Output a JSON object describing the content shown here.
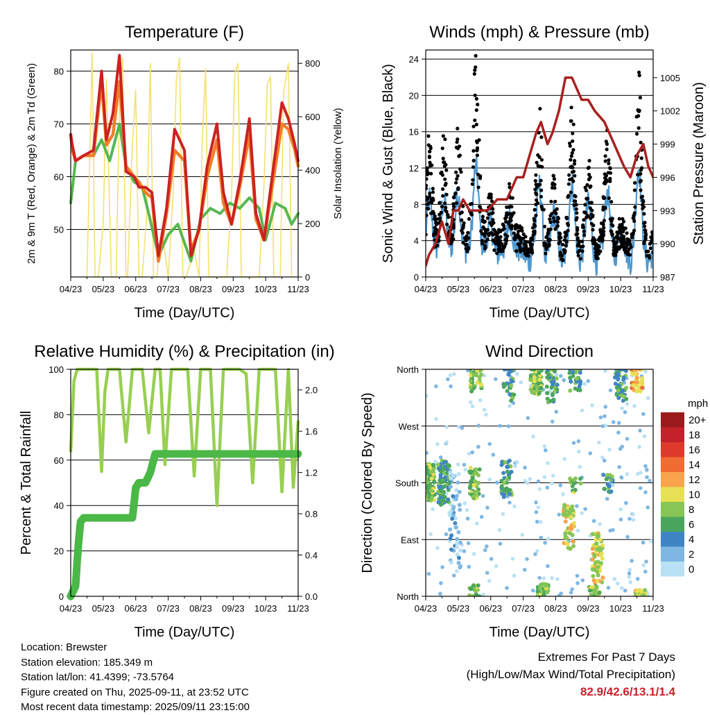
{
  "info": {
    "location": "Location: Brewster",
    "elevation": "Station elevation: 185.349 m",
    "latlon": "Station lat/lon: 41.4399; -73.5764",
    "created": "Figure created on Thu, 2025-09-11, at 23:52 UTC",
    "recent": "Most recent data timestamp: 2025/09/11 23:15:00"
  },
  "extremes": {
    "title": "Extremes For Past 7 Days",
    "subtitle": "(High/Low/Max Wind/Total Precipitation)",
    "values": "82.9/42.6/13.1/1.4"
  },
  "colors": {
    "temp_2m": "#cc2222",
    "temp_9m": "#f07f27",
    "dewpoint": "#4db347",
    "solar": "#f5e070",
    "gust": "#000000",
    "wind": "#4e98d0",
    "pressure": "#a8201e",
    "rh": "#98cf52",
    "rain": "#4bb847"
  },
  "chart_data": [
    {
      "id": "temperature",
      "type": "line",
      "title": "Temperature (F)",
      "xlabel": "Time (Day/UTC)",
      "ylabel": "2m & 9m T (Red, Orange) & 2m Td (Green)",
      "ylabel_right": "Solar Insolation (Yellow)",
      "xticks": [
        "04/23",
        "05/23",
        "06/23",
        "07/23",
        "08/23",
        "09/23",
        "10/23",
        "11/23"
      ],
      "xlim": [
        0,
        7
      ],
      "ylim": [
        41,
        84
      ],
      "yticks": [
        50,
        60,
        70,
        80
      ],
      "ylim_right": [
        0,
        850
      ],
      "yticks_right": [
        0,
        200,
        400,
        600,
        800
      ],
      "grid": true,
      "series": [
        {
          "key": "temp_2m",
          "x": [
            0,
            0.05,
            0.15,
            0.4,
            0.7,
            0.95,
            1.1,
            1.3,
            1.5,
            1.7,
            1.95,
            2.1,
            2.3,
            2.5,
            2.7,
            2.95,
            3.2,
            3.5,
            3.7,
            3.95,
            4.2,
            4.5,
            4.7,
            4.95,
            5.2,
            5.5,
            5.7,
            5.95,
            6.2,
            6.5,
            6.7,
            6.9,
            7.0
          ],
          "y": [
            68,
            66,
            63,
            64,
            65,
            80,
            67,
            72,
            83,
            61,
            60,
            58,
            58,
            57,
            45,
            54,
            69,
            65,
            45,
            50,
            62,
            70,
            57,
            51,
            59,
            71,
            53,
            48,
            60,
            74,
            71,
            66,
            63
          ]
        },
        {
          "key": "temp_9m",
          "x": [
            0,
            0.05,
            0.15,
            0.4,
            0.7,
            0.95,
            1.1,
            1.3,
            1.5,
            1.7,
            1.95,
            2.1,
            2.3,
            2.5,
            2.7,
            2.95,
            3.2,
            3.5,
            3.7,
            3.95,
            4.2,
            4.5,
            4.7,
            4.95,
            5.2,
            5.5,
            5.7,
            5.95,
            6.2,
            6.5,
            6.7,
            6.9,
            7.0
          ],
          "y": [
            68,
            65,
            63,
            64,
            64,
            78,
            66,
            68,
            78,
            62,
            60,
            59,
            57,
            56,
            44,
            53,
            65,
            63,
            46,
            50,
            60,
            67,
            55,
            51,
            58,
            68,
            52,
            48,
            58,
            70,
            69,
            65,
            62
          ]
        },
        {
          "key": "dewpoint",
          "x": [
            0,
            0.15,
            0.4,
            0.7,
            0.95,
            1.2,
            1.5,
            1.7,
            1.95,
            2.2,
            2.4,
            2.7,
            3.0,
            3.3,
            3.7,
            4.0,
            4.3,
            4.6,
            4.9,
            5.2,
            5.5,
            5.8,
            6.0,
            6.3,
            6.6,
            6.8,
            7.0
          ],
          "y": [
            55,
            63,
            64,
            64,
            67,
            63,
            70,
            62,
            59,
            58,
            53,
            45,
            49,
            51,
            44,
            52,
            54,
            53,
            55,
            54,
            56,
            54,
            48,
            55,
            54,
            51,
            53
          ]
        },
        {
          "key": "solar",
          "x": [
            0.4,
            0.5,
            0.58,
            0.66,
            0.75,
            0.85,
            1.0,
            1.1,
            1.25,
            1.4,
            1.5,
            1.6,
            1.7,
            1.75,
            1.9,
            2.0,
            2.1,
            2.2,
            2.35,
            2.45,
            2.55,
            2.65,
            2.8,
            3.0,
            3.15,
            3.25,
            3.35,
            3.45,
            3.55,
            3.8,
            3.95,
            4.05,
            4.15,
            4.25,
            4.35,
            4.55,
            4.8,
            4.95,
            5.05,
            5.15,
            5.25,
            5.35,
            5.55,
            5.8,
            5.95,
            6.05,
            6.15,
            6.25,
            6.35,
            6.45,
            6.55,
            6.7,
            6.8
          ],
          "y": [
            0,
            0,
            420,
            840,
            0,
            0,
            200,
            740,
            0,
            0,
            650,
            820,
            0,
            0,
            500,
            700,
            0,
            0,
            250,
            800,
            0,
            0,
            180,
            0,
            300,
            740,
            820,
            0,
            0,
            100,
            0,
            520,
            780,
            0,
            0,
            0,
            0,
            300,
            760,
            800,
            0,
            0,
            0,
            0,
            350,
            720,
            750,
            0,
            0,
            0,
            690,
            800,
            0
          ]
        }
      ]
    },
    {
      "id": "winds",
      "type": "scatter",
      "title": "Winds (mph) & Pressure (mb)",
      "xlabel": "Time (Day/UTC)",
      "ylabel": "Sonic Wind & Gust (Blue, Black)",
      "ylabel_right": "Station Pressure (Maroon)",
      "xticks": [
        "04/23",
        "05/23",
        "06/23",
        "07/23",
        "08/23",
        "09/23",
        "10/23",
        "11/23"
      ],
      "xlim": [
        0,
        7
      ],
      "ylim": [
        0,
        25
      ],
      "yticks": [
        0,
        4,
        8,
        12,
        16,
        20,
        24
      ],
      "ylim_right": [
        987,
        1007.5
      ],
      "yticks_right": [
        987,
        990,
        993,
        996,
        999,
        1002,
        1005
      ],
      "grid": true,
      "series": [
        {
          "key": "pressure",
          "x": [
            0,
            0.1,
            0.3,
            0.5,
            0.7,
            0.85,
            1.0,
            1.15,
            1.35,
            1.6,
            1.9,
            2.2,
            2.5,
            2.65,
            2.8,
            3.0,
            3.2,
            3.4,
            3.55,
            3.75,
            3.9,
            4.1,
            4.3,
            4.5,
            4.65,
            4.8,
            5.0,
            5.2,
            5.5,
            5.8,
            6.1,
            6.3,
            6.5,
            6.7,
            6.85,
            7.0
          ],
          "y": [
            988,
            989,
            990,
            992,
            990,
            993,
            993,
            994,
            993,
            993,
            993,
            994,
            994,
            995,
            996,
            996,
            998,
            1000,
            1001,
            999,
            1000,
            1002,
            1005,
            1005,
            1004,
            1003,
            1003,
            1002,
            1001,
            999,
            997,
            996,
            998,
            999,
            997,
            996
          ]
        }
      ],
      "gust_clusters": [
        {
          "x": 0.1,
          "peak": 14
        },
        {
          "x": 0.55,
          "peak": 15
        },
        {
          "x": 1.0,
          "peak": 16
        },
        {
          "x": 1.55,
          "peak": 23
        },
        {
          "x": 2.0,
          "peak": 8
        },
        {
          "x": 2.6,
          "peak": 10
        },
        {
          "x": 3.5,
          "peak": 16
        },
        {
          "x": 3.95,
          "peak": 9
        },
        {
          "x": 4.5,
          "peak": 16
        },
        {
          "x": 5.0,
          "peak": 11
        },
        {
          "x": 5.6,
          "peak": 14
        },
        {
          "x": 6.0,
          "peak": 5
        },
        {
          "x": 6.55,
          "peak": 20
        }
      ]
    },
    {
      "id": "humidity",
      "type": "line",
      "title": "Relative Humidity (%) & Precipitation (in)",
      "xlabel": "Time (Day/UTC)",
      "ylabel": "Percent & Total Rainfall",
      "xticks": [
        "04/23",
        "05/23",
        "06/23",
        "07/23",
        "08/23",
        "09/23",
        "10/23",
        "11/23"
      ],
      "xlim": [
        0,
        7
      ],
      "ylim": [
        0,
        100
      ],
      "yticks": [
        0,
        20,
        40,
        60,
        80,
        100
      ],
      "ylim_right": [
        0,
        2.2
      ],
      "yticks_right": [
        "0.0",
        "0.4",
        "0.8",
        "1.2",
        "1.6",
        "2.0"
      ],
      "grid": true,
      "series": [
        {
          "key": "rh",
          "x": [
            0,
            0.1,
            0.2,
            0.4,
            0.6,
            0.8,
            0.95,
            1.05,
            1.15,
            1.3,
            1.5,
            1.7,
            1.9,
            2.05,
            2.2,
            2.4,
            2.6,
            2.75,
            2.9,
            3.1,
            3.3,
            3.45,
            3.6,
            3.8,
            4.0,
            4.15,
            4.3,
            4.5,
            4.7,
            4.9,
            5.05,
            5.2,
            5.4,
            5.6,
            5.8,
            5.95,
            6.1,
            6.3,
            6.5,
            6.7,
            6.85,
            7.0
          ],
          "y": [
            64,
            95,
            100,
            100,
            100,
            100,
            55,
            90,
            100,
            100,
            100,
            68,
            100,
            100,
            100,
            72,
            100,
            100,
            58,
            100,
            100,
            100,
            100,
            53,
            100,
            100,
            100,
            40,
            100,
            100,
            100,
            100,
            98,
            50,
            100,
            100,
            100,
            100,
            46,
            100,
            48,
            77
          ]
        },
        {
          "key": "rain",
          "x": [
            0,
            0.15,
            0.2,
            0.25,
            0.3,
            0.4,
            1.0,
            1.9,
            2.0,
            2.1,
            2.3,
            2.45,
            2.6,
            3.0,
            4.0,
            5.0,
            6.0,
            7.0
          ],
          "y": [
            0.0,
            0.1,
            0.35,
            0.55,
            0.72,
            0.76,
            0.76,
            0.76,
            1.05,
            1.1,
            1.1,
            1.2,
            1.38,
            1.38,
            1.38,
            1.38,
            1.38,
            1.38
          ]
        }
      ]
    },
    {
      "id": "direction",
      "type": "scatter",
      "title": "Wind Direction",
      "xlabel": "Time (Day/UTC)",
      "ylabel": "Direction (Colored By Speed)",
      "xticks": [
        "04/23",
        "05/23",
        "06/23",
        "07/23",
        "08/23",
        "09/23",
        "10/23",
        "11/23"
      ],
      "xlim": [
        0,
        7
      ],
      "ylim": [
        0,
        360
      ],
      "yticks": [
        "North",
        "East",
        "South",
        "West",
        "North"
      ],
      "grid": true,
      "legend": {
        "title": "mph",
        "labels": [
          "20+",
          "18",
          "16",
          "14",
          "12",
          "10",
          "8",
          "6",
          "4",
          "2",
          "0"
        ],
        "colors": [
          "#9b1a1c",
          "#c4222a",
          "#de3a2b",
          "#ef6c32",
          "#f7a44c",
          "#e7e055",
          "#86c556",
          "#4aa65c",
          "#3f85c3",
          "#7fb7e2",
          "#b9e1f5"
        ]
      },
      "clusters": [
        {
          "x": 0.1,
          "dir": 180,
          "spread": 30,
          "n": 120,
          "level": 4
        },
        {
          "x": 0.55,
          "dir": 180,
          "spread": 35,
          "n": 70,
          "level": 3
        },
        {
          "x": 0.9,
          "dir": 120,
          "spread": 80,
          "n": 50,
          "level": 1
        },
        {
          "x": 1.5,
          "dir": 180,
          "spread": 25,
          "n": 40,
          "level": 4
        },
        {
          "x": 1.55,
          "dir": 345,
          "spread": 20,
          "n": 40,
          "level": 4
        },
        {
          "x": 1.5,
          "dir": 8,
          "spread": 10,
          "n": 25,
          "level": 4
        },
        {
          "x": 2.5,
          "dir": 185,
          "spread": 30,
          "n": 40,
          "level": 3
        },
        {
          "x": 2.55,
          "dir": 340,
          "spread": 30,
          "n": 30,
          "level": 3
        },
        {
          "x": 3.4,
          "dir": 345,
          "spread": 25,
          "n": 60,
          "level": 4
        },
        {
          "x": 3.6,
          "dir": 10,
          "spread": 10,
          "n": 30,
          "level": 4
        },
        {
          "x": 3.9,
          "dir": 335,
          "spread": 30,
          "n": 40,
          "level": 3
        },
        {
          "x": 4.4,
          "dir": 110,
          "spread": 35,
          "n": 50,
          "level": 5
        },
        {
          "x": 4.6,
          "dir": 180,
          "spread": 15,
          "n": 15,
          "level": 4
        },
        {
          "x": 4.6,
          "dir": 345,
          "spread": 20,
          "n": 30,
          "level": 3
        },
        {
          "x": 5.3,
          "dir": 60,
          "spread": 40,
          "n": 70,
          "level": 5
        },
        {
          "x": 5.2,
          "dir": 8,
          "spread": 8,
          "n": 30,
          "level": 4
        },
        {
          "x": 5.6,
          "dir": 180,
          "spread": 15,
          "n": 20,
          "level": 3
        },
        {
          "x": 6.0,
          "dir": 340,
          "spread": 30,
          "n": 50,
          "level": 3
        },
        {
          "x": 6.5,
          "dir": 345,
          "spread": 20,
          "n": 40,
          "level": 6
        },
        {
          "x": 6.6,
          "dir": 5,
          "spread": 6,
          "n": 20,
          "level": 5
        }
      ]
    }
  ]
}
